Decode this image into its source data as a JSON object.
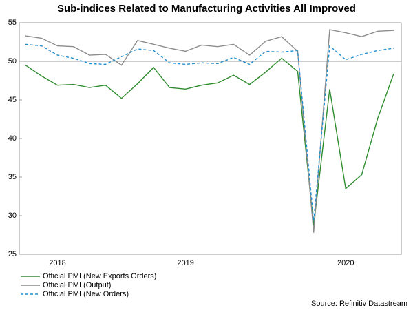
{
  "chart_data": {
    "type": "line",
    "title": "Sub-indices Related to Manufacturing Activities All Improved",
    "source": "Source: Refinitiv Datastream",
    "categories": [
      null,
      null,
      "2018",
      null,
      null,
      null,
      null,
      null,
      null,
      null,
      "2019",
      null,
      null,
      null,
      null,
      null,
      null,
      null,
      null,
      null,
      "2020",
      null,
      null,
      null
    ],
    "series": [
      {
        "name": "Official PMI (New Exports Orders)",
        "color": "#2e8b2e",
        "dash": false,
        "values": [
          49.5,
          48.1,
          46.9,
          47.0,
          46.6,
          46.9,
          45.2,
          47.1,
          49.2,
          46.6,
          46.4,
          46.9,
          47.2,
          48.2,
          47.0,
          48.6,
          50.4,
          48.7,
          28.7,
          46.4,
          33.5,
          35.3,
          42.6,
          48.4
        ]
      },
      {
        "name": "Official PMI (Output)",
        "color": "#8c8c8c",
        "dash": false,
        "values": [
          53.3,
          53.0,
          52.0,
          51.9,
          50.8,
          50.9,
          49.5,
          52.7,
          52.2,
          51.7,
          51.3,
          52.1,
          51.9,
          52.2,
          50.8,
          52.6,
          53.2,
          51.3,
          27.8,
          54.1,
          53.7,
          53.2,
          53.9,
          54.0
        ]
      },
      {
        "name": "Official PMI (New Orders)",
        "color": "#1f8fd0",
        "dash": true,
        "values": [
          52.2,
          52.0,
          50.8,
          50.4,
          49.7,
          49.6,
          50.6,
          51.6,
          51.4,
          49.8,
          49.6,
          49.8,
          49.7,
          50.5,
          49.6,
          51.3,
          51.2,
          51.4,
          29.3,
          52.0,
          50.2,
          50.9,
          51.4,
          51.7
        ]
      }
    ],
    "reference_line": 50,
    "ylim": [
      25,
      55
    ],
    "yticks": [
      25,
      30,
      35,
      40,
      45,
      50,
      55
    ],
    "grid": false
  }
}
